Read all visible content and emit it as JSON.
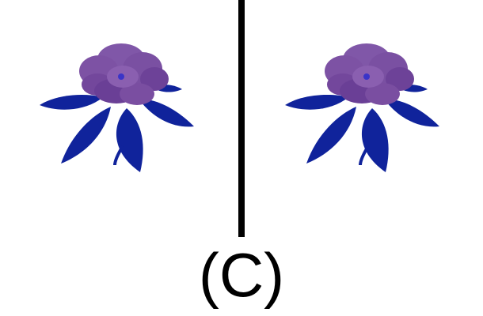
{
  "caption": "(C)",
  "colors": {
    "leaf": "#10239b",
    "petal": "#7f52a6",
    "petal_shade": "#6a3f96",
    "divider": "#000000"
  },
  "panels": [
    {
      "content": "purple-flower-icon"
    },
    {
      "content": "purple-flower-icon"
    }
  ]
}
